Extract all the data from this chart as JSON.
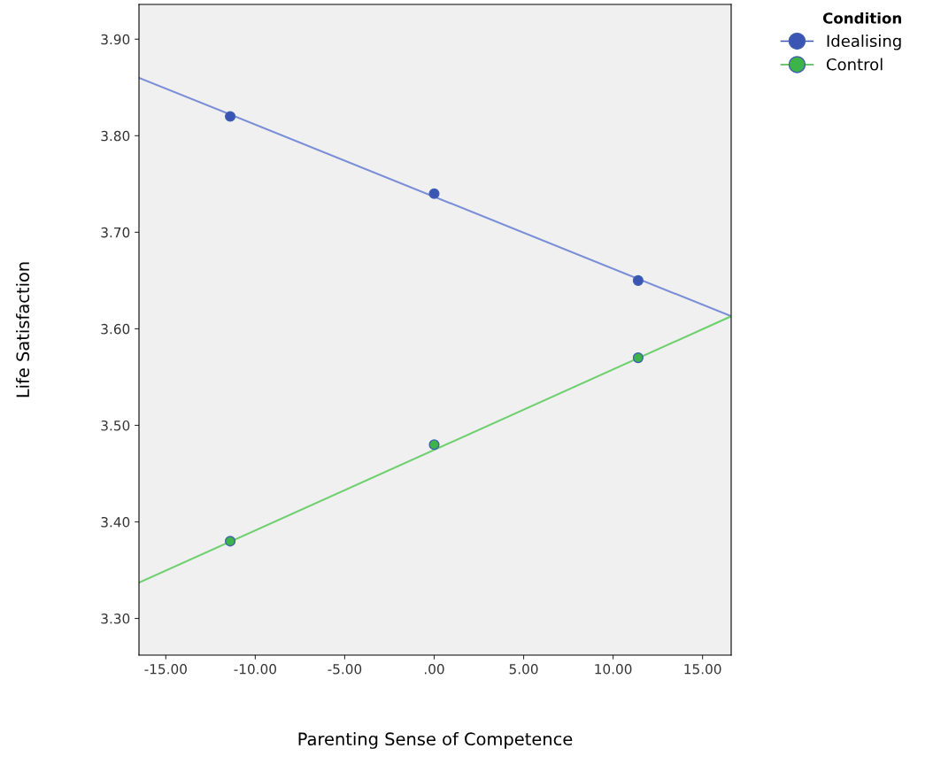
{
  "chart_data": {
    "type": "scatter",
    "xlabel": "Parenting Sense of Competence",
    "ylabel": "Life Satisfaction",
    "legend_title": "Condition",
    "legend": "top right",
    "grid": false,
    "series": [
      {
        "name": "Idealising",
        "marker": "circle",
        "color": "#3a55b4",
        "x": [
          -11.4,
          0,
          11.4
        ],
        "values": [
          3.82,
          3.74,
          3.65
        ]
      },
      {
        "name": "Control",
        "marker": "circle",
        "color": "#3cb44a",
        "x": [
          -11.4,
          0,
          11.4
        ],
        "values": [
          3.38,
          3.48,
          3.57
        ]
      },
      {
        "type": "line",
        "marker": "none",
        "color": "#7b8ed8",
        "x": [
          -16.5,
          16.6
        ],
        "values": [
          3.86,
          3.613
        ]
      },
      {
        "type": "line",
        "marker": "none",
        "color": "#6fd06f",
        "x": [
          -16.5,
          16.6
        ],
        "values": [
          3.337,
          3.613
        ]
      }
    ],
    "xlim": [
      -16.5,
      16.6
    ],
    "ylim": [
      3.262,
      3.936
    ],
    "xticks": [
      {
        "value": -15,
        "label": "-15.00"
      },
      {
        "value": -10,
        "label": "-10.00"
      },
      {
        "value": -5,
        "label": "-5.00"
      },
      {
        "value": 0,
        "label": ".00"
      },
      {
        "value": 5,
        "label": "5.00"
      },
      {
        "value": 10,
        "label": "10.00"
      },
      {
        "value": 15,
        "label": "15.00"
      }
    ],
    "yticks": [
      {
        "value": 3.3,
        "label": "3.30"
      },
      {
        "value": 3.4,
        "label": "3.40"
      },
      {
        "value": 3.5,
        "label": "3.50"
      },
      {
        "value": 3.6,
        "label": "3.60"
      },
      {
        "value": 3.7,
        "label": "3.70"
      },
      {
        "value": 3.8,
        "label": "3.80"
      },
      {
        "value": 3.9,
        "label": "3.90"
      }
    ]
  }
}
